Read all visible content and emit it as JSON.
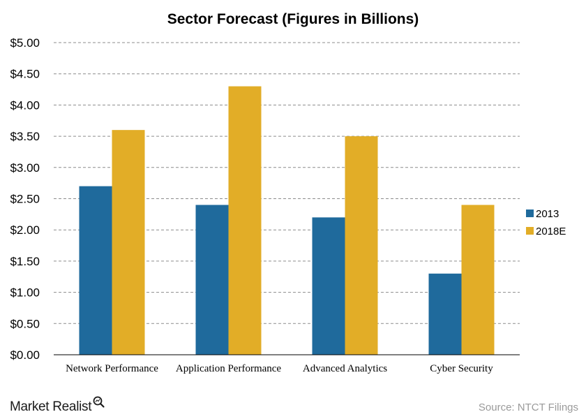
{
  "chart_data": {
    "type": "bar",
    "title": "Sector Forecast (Figures in Billions)",
    "categories": [
      "Network Performance",
      "Application Performance",
      "Advanced Analytics",
      "Cyber Security"
    ],
    "series": [
      {
        "name": "2013",
        "values": [
          2.7,
          2.4,
          2.2,
          1.3
        ],
        "color": "#1f6a9c"
      },
      {
        "name": "2018E",
        "values": [
          3.6,
          4.3,
          3.5,
          2.4
        ],
        "color": "#e2ad27"
      }
    ],
    "ylim": [
      0,
      5
    ],
    "yticks": [
      "$0.00",
      "$0.50",
      "$1.00",
      "$1.50",
      "$2.00",
      "$2.50",
      "$3.00",
      "$3.50",
      "$4.00",
      "$4.50",
      "$5.00"
    ],
    "grid": true,
    "legend_position": "right"
  },
  "branding": {
    "logo_text": "Market Realist",
    "logo_icon": "magnifier-icon",
    "source": "Source: NTCT Filings"
  }
}
